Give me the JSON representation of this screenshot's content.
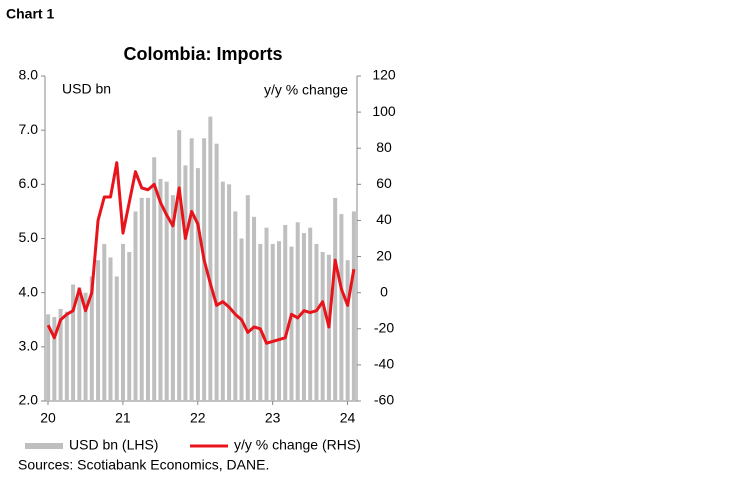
{
  "chart_label": "Chart 1",
  "chart_data": {
    "type": "bar_line",
    "title": "Colombia: Imports",
    "y_axis_label": "USD bn",
    "y2_axis_label": "y/y % change",
    "categories": [
      "20",
      null,
      null,
      null,
      null,
      null,
      null,
      null,
      null,
      null,
      null,
      null,
      "21",
      null,
      null,
      null,
      null,
      null,
      null,
      null,
      null,
      null,
      null,
      null,
      "22",
      null,
      null,
      null,
      null,
      null,
      null,
      null,
      null,
      null,
      null,
      null,
      "23",
      null,
      null,
      null,
      null,
      null,
      null,
      null,
      null,
      null,
      null,
      null,
      "24",
      null
    ],
    "series": [
      {
        "name": "USD bn (LHS)",
        "type": "bar",
        "color": "#bfbfbf",
        "values": [
          3.6,
          3.55,
          3.7,
          3.65,
          4.15,
          4.1,
          4.0,
          4.3,
          4.6,
          4.9,
          4.65,
          4.3,
          4.9,
          4.75,
          5.5,
          5.75,
          5.75,
          6.5,
          6.1,
          6.05,
          5.8,
          7.0,
          6.35,
          6.85,
          6.3,
          6.85,
          7.25,
          6.75,
          6.05,
          6.0,
          5.5,
          5.0,
          5.8,
          5.4,
          4.9,
          5.2,
          4.9,
          4.95,
          5.25,
          4.85,
          5.3,
          5.1,
          5.2,
          4.9,
          4.75,
          4.7,
          5.75,
          5.45,
          4.6,
          5.5
        ]
      },
      {
        "name": "y/y % change (RHS)",
        "type": "line",
        "axis": "y2",
        "color": "#e8141c",
        "values": [
          -18,
          -25,
          -15,
          -12,
          -10,
          2,
          -10,
          0,
          40,
          53,
          53,
          72,
          33,
          50,
          67,
          58,
          57,
          60,
          50,
          43,
          37,
          58,
          30,
          45,
          38,
          18,
          5,
          -7,
          -5,
          -8,
          -12,
          -15,
          -22,
          -19,
          -20,
          -28,
          -27,
          -26,
          -25,
          -12,
          -14,
          -10,
          -11,
          -10,
          -5,
          -19,
          18,
          2,
          -7,
          13
        ]
      }
    ],
    "ylim": [
      2.0,
      8.0
    ],
    "yticks": [
      {
        "value": 2,
        "label": "2.0"
      },
      {
        "value": 3,
        "label": "3.0"
      },
      {
        "value": 4,
        "label": "4.0"
      },
      {
        "value": 5,
        "label": "5.0"
      },
      {
        "value": 6,
        "label": "6.0"
      },
      {
        "value": 7,
        "label": "7.0"
      },
      {
        "value": 8,
        "label": "8.0"
      }
    ],
    "y2lim": [
      -60,
      120
    ],
    "y2ticks": [
      -60,
      -40,
      -20,
      0,
      20,
      40,
      60,
      80,
      100,
      120
    ],
    "source": "Sources: Scotiabank Economics, DANE."
  }
}
